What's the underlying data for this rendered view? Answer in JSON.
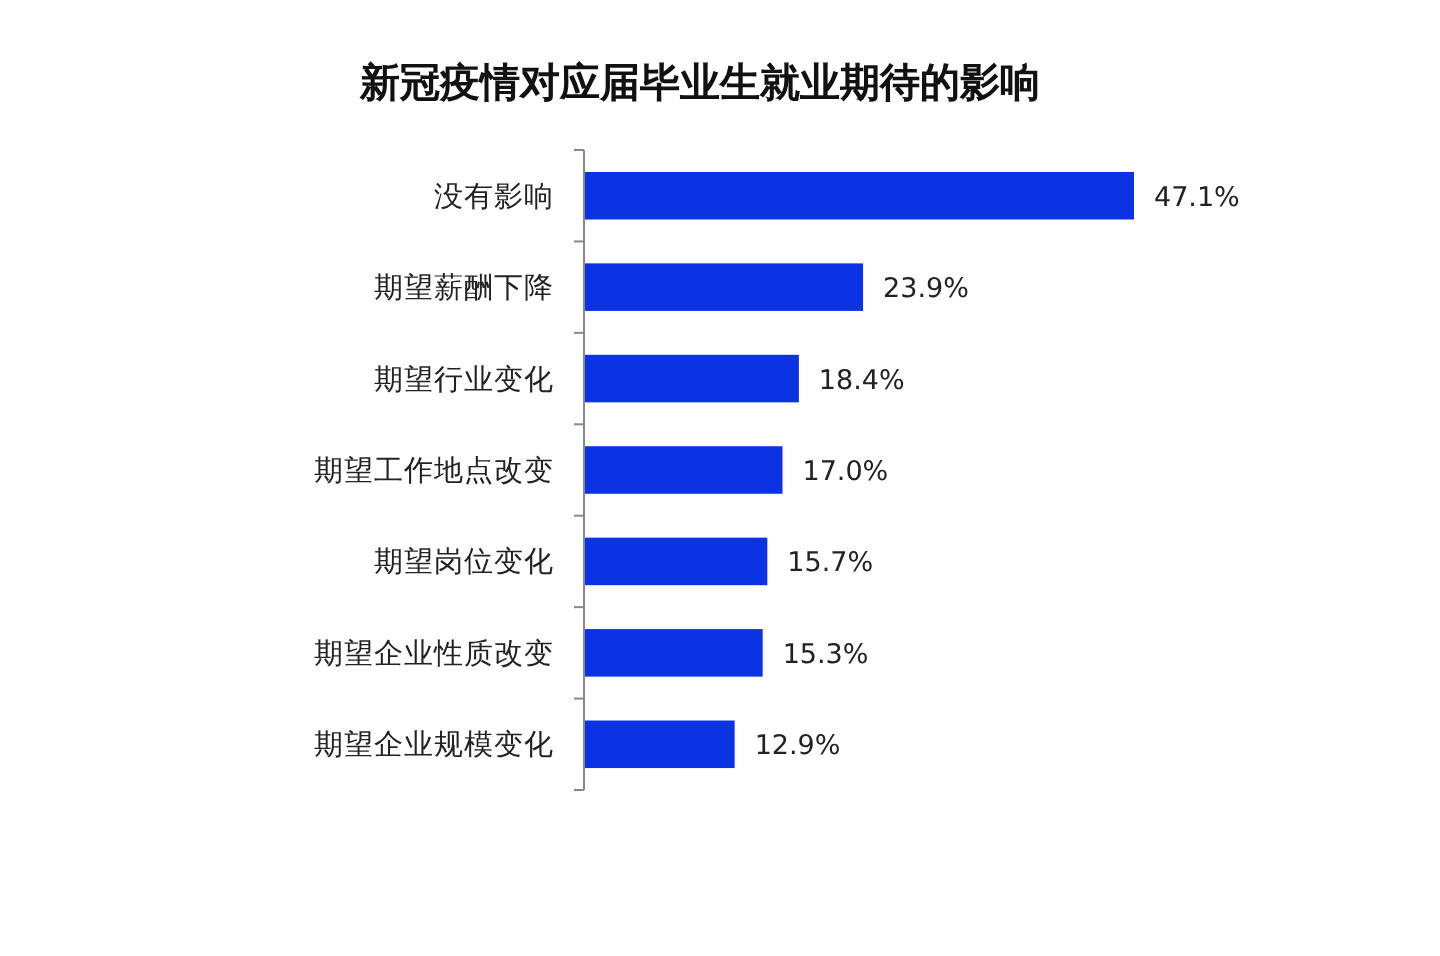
{
  "chart_data": {
    "type": "bar",
    "orientation": "horizontal",
    "title": "新冠疫情对应届毕业生就业期待的影响",
    "categories": [
      "没有影响",
      "期望薪酬下降",
      "期望行业变化",
      "期望工作地点改变",
      "期望岗位变化",
      "期望企业性质改变",
      "期望企业规模变化"
    ],
    "values": [
      47.1,
      23.9,
      18.4,
      17.0,
      15.7,
      15.3,
      12.9
    ],
    "value_labels": [
      "47.1%",
      "23.9%",
      "18.4%",
      "17.0%",
      "15.7%",
      "15.3%",
      "12.9%"
    ],
    "color": "#0b33e3"
  }
}
